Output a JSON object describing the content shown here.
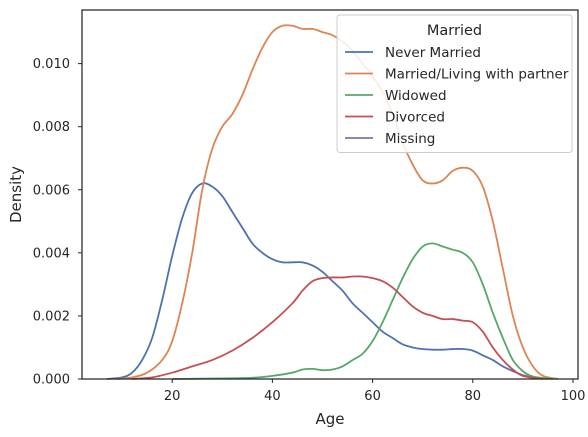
{
  "chart_data": {
    "type": "line",
    "xlabel": "Age",
    "ylabel": "Density",
    "xlim": [
      2,
      101
    ],
    "ylim": [
      0,
      0.0117
    ],
    "x_ticks": [
      20,
      40,
      60,
      80,
      100
    ],
    "y_ticks": [
      "0.000",
      "0.002",
      "0.004",
      "0.006",
      "0.008",
      "0.010"
    ],
    "y_tick_values": [
      0,
      0.002,
      0.004,
      0.006,
      0.008,
      0.01
    ],
    "grid": false,
    "legend": {
      "title": "Married",
      "placement": "top-right"
    },
    "series": [
      {
        "name": "Never Married",
        "color": "#4c72b0",
        "points": [
          [
            7,
            0
          ],
          [
            10,
            5e-05
          ],
          [
            12,
            0.0002
          ],
          [
            14,
            0.0006
          ],
          [
            16,
            0.0013
          ],
          [
            18,
            0.0025
          ],
          [
            20,
            0.0039
          ],
          [
            22,
            0.0051
          ],
          [
            24,
            0.0059
          ],
          [
            26,
            0.0062
          ],
          [
            28,
            0.0061
          ],
          [
            30,
            0.0058
          ],
          [
            32,
            0.0053
          ],
          [
            34,
            0.0048
          ],
          [
            36,
            0.0043
          ],
          [
            38,
            0.004
          ],
          [
            40,
            0.0038
          ],
          [
            42,
            0.0037
          ],
          [
            44,
            0.0037
          ],
          [
            46,
            0.0037
          ],
          [
            48,
            0.0036
          ],
          [
            50,
            0.0034
          ],
          [
            52,
            0.0031
          ],
          [
            54,
            0.0028
          ],
          [
            56,
            0.0024
          ],
          [
            58,
            0.0021
          ],
          [
            60,
            0.0018
          ],
          [
            62,
            0.0015
          ],
          [
            64,
            0.0013
          ],
          [
            66,
            0.0011
          ],
          [
            68,
            0.001
          ],
          [
            70,
            0.00095
          ],
          [
            72,
            0.00093
          ],
          [
            74,
            0.00093
          ],
          [
            76,
            0.00095
          ],
          [
            78,
            0.00095
          ],
          [
            80,
            0.0009
          ],
          [
            82,
            0.00075
          ],
          [
            84,
            0.0006
          ],
          [
            86,
            0.0004
          ],
          [
            88,
            0.00025
          ],
          [
            90,
            0.00012
          ],
          [
            92,
            5e-05
          ],
          [
            95,
            0
          ]
        ]
      },
      {
        "name": "Married/Living with partner",
        "color": "#dd8452",
        "points": [
          [
            9,
            0
          ],
          [
            12,
            5e-05
          ],
          [
            15,
            0.0002
          ],
          [
            18,
            0.0006
          ],
          [
            20,
            0.0012
          ],
          [
            22,
            0.0024
          ],
          [
            24,
            0.004
          ],
          [
            26,
            0.006
          ],
          [
            28,
            0.0073
          ],
          [
            30,
            0.008
          ],
          [
            32,
            0.0084
          ],
          [
            34,
            0.009
          ],
          [
            36,
            0.0098
          ],
          [
            38,
            0.0105
          ],
          [
            40,
            0.011
          ],
          [
            42,
            0.0112
          ],
          [
            44,
            0.0112
          ],
          [
            46,
            0.0111
          ],
          [
            48,
            0.0111
          ],
          [
            50,
            0.011
          ],
          [
            52,
            0.0109
          ],
          [
            54,
            0.0107
          ],
          [
            56,
            0.0104
          ],
          [
            58,
            0.01
          ],
          [
            60,
            0.0096
          ],
          [
            62,
            0.0091
          ],
          [
            64,
            0.0084
          ],
          [
            66,
            0.0075
          ],
          [
            68,
            0.0068
          ],
          [
            70,
            0.0063
          ],
          [
            72,
            0.0062
          ],
          [
            74,
            0.0063
          ],
          [
            76,
            0.0066
          ],
          [
            78,
            0.0067
          ],
          [
            80,
            0.0066
          ],
          [
            82,
            0.0061
          ],
          [
            84,
            0.005
          ],
          [
            86,
            0.0035
          ],
          [
            88,
            0.002
          ],
          [
            90,
            0.001
          ],
          [
            92,
            0.0004
          ],
          [
            94,
            0.0001
          ],
          [
            97,
            0
          ]
        ]
      },
      {
        "name": "Widowed",
        "color": "#55a868",
        "points": [
          [
            20,
            0
          ],
          [
            30,
            2e-05
          ],
          [
            36,
            4e-05
          ],
          [
            40,
            0.0001
          ],
          [
            44,
            0.0002
          ],
          [
            46,
            0.0003
          ],
          [
            48,
            0.00032
          ],
          [
            50,
            0.00028
          ],
          [
            52,
            0.0003
          ],
          [
            54,
            0.0004
          ],
          [
            56,
            0.0006
          ],
          [
            58,
            0.0008
          ],
          [
            60,
            0.0012
          ],
          [
            62,
            0.0018
          ],
          [
            64,
            0.0025
          ],
          [
            66,
            0.0032
          ],
          [
            68,
            0.0038
          ],
          [
            70,
            0.0042
          ],
          [
            72,
            0.0043
          ],
          [
            74,
            0.0042
          ],
          [
            76,
            0.0041
          ],
          [
            78,
            0.004
          ],
          [
            80,
            0.0037
          ],
          [
            82,
            0.003
          ],
          [
            84,
            0.0021
          ],
          [
            86,
            0.0013
          ],
          [
            88,
            0.0006
          ],
          [
            90,
            0.00025
          ],
          [
            92,
            8e-05
          ],
          [
            96,
            0
          ]
        ]
      },
      {
        "name": "Divorced",
        "color": "#c44e52",
        "points": [
          [
            12,
            0
          ],
          [
            16,
            5e-05
          ],
          [
            20,
            0.0002
          ],
          [
            24,
            0.0004
          ],
          [
            28,
            0.0006
          ],
          [
            32,
            0.0009
          ],
          [
            36,
            0.0013
          ],
          [
            40,
            0.0018
          ],
          [
            44,
            0.0024
          ],
          [
            46,
            0.0028
          ],
          [
            48,
            0.0031
          ],
          [
            50,
            0.0032
          ],
          [
            52,
            0.00322
          ],
          [
            54,
            0.00322
          ],
          [
            56,
            0.00325
          ],
          [
            58,
            0.00325
          ],
          [
            60,
            0.0032
          ],
          [
            62,
            0.0031
          ],
          [
            64,
            0.0029
          ],
          [
            66,
            0.0026
          ],
          [
            68,
            0.0023
          ],
          [
            70,
            0.0021
          ],
          [
            72,
            0.002
          ],
          [
            74,
            0.0019
          ],
          [
            76,
            0.0019
          ],
          [
            78,
            0.00185
          ],
          [
            80,
            0.0018
          ],
          [
            82,
            0.0015
          ],
          [
            84,
            0.001
          ],
          [
            86,
            0.0006
          ],
          [
            88,
            0.0003
          ],
          [
            90,
            0.0001
          ],
          [
            94,
            0
          ]
        ]
      },
      {
        "name": "Missing",
        "color": "#8172b3",
        "points": []
      }
    ]
  }
}
